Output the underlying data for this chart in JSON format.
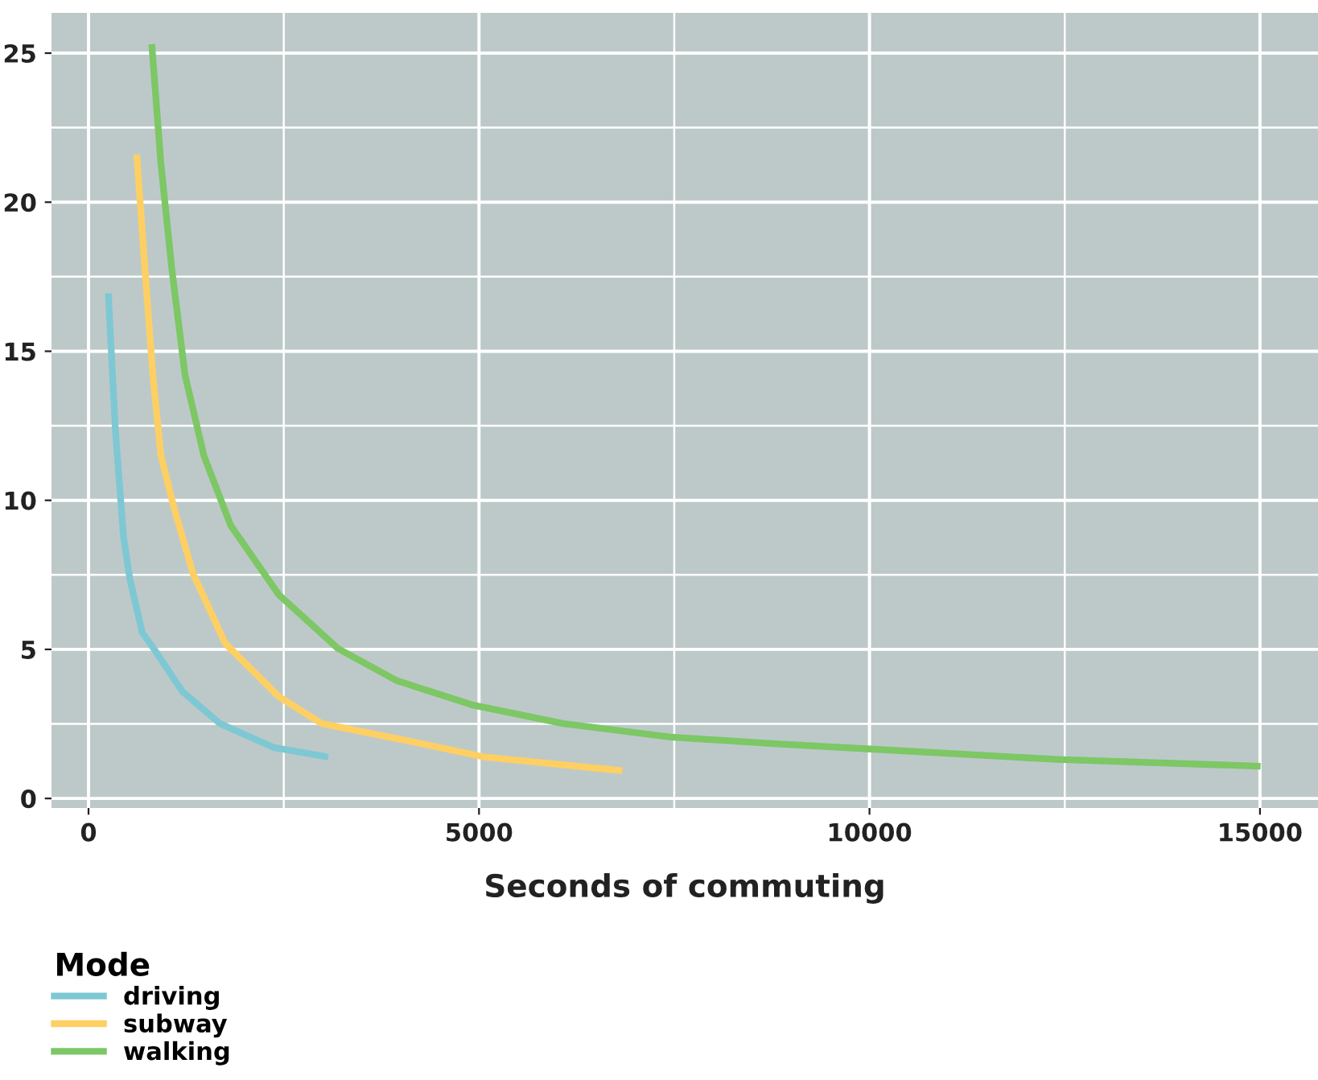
{
  "chart_data": {
    "type": "line",
    "xlabel": "Seconds of commuting",
    "legend_title": "Mode",
    "legend": "bottom left",
    "grid": true,
    "xlim": [
      -474,
      15743
    ],
    "ylim": [
      -0.32,
      26.35
    ],
    "xticks": [
      0,
      5000,
      10000,
      15000
    ],
    "yticks": [
      0,
      5,
      10,
      15,
      20,
      25
    ],
    "series": [
      {
        "name": "driving",
        "color": "#7ec8d4",
        "x": [
          254,
          343,
          447,
          529,
          687,
          858,
          1201,
          1683,
          2370,
          3070
        ],
        "values": [
          16.94,
          12.4,
          8.8,
          7.37,
          5.57,
          4.94,
          3.59,
          2.51,
          1.71,
          1.39
        ]
      },
      {
        "name": "subway",
        "color": "#fecf63",
        "x": [
          618,
          721,
          824,
          927,
          1099,
          1339,
          1751,
          2438,
          2988,
          4018,
          5048,
          6835
        ],
        "values": [
          21.6,
          17.8,
          14.2,
          11.5,
          9.7,
          7.54,
          5.2,
          3.41,
          2.51,
          1.97,
          1.4,
          0.93
        ]
      },
      {
        "name": "walking",
        "color": "#7dc765",
        "x": [
          810,
          927,
          1065,
          1236,
          1477,
          1820,
          2438,
          3194,
          3950,
          4911,
          6079,
          7452,
          8826,
          9925,
          12398,
          15008
        ],
        "values": [
          25.3,
          21.3,
          17.8,
          14.2,
          11.5,
          9.16,
          6.83,
          5.03,
          3.95,
          3.14,
          2.51,
          2.06,
          1.83,
          1.67,
          1.31,
          1.08
        ]
      }
    ]
  }
}
